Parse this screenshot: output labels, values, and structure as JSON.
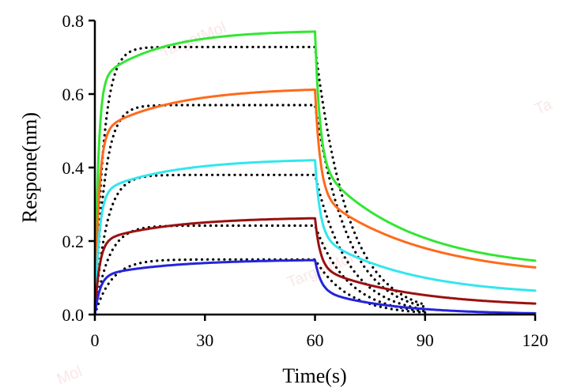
{
  "chart_data": {
    "type": "line",
    "title": "",
    "xlabel": "Time(s)",
    "ylabel": "Respone(nm)",
    "xlim": [
      0,
      120
    ],
    "ylim": [
      0,
      0.8
    ],
    "xticks": [
      "0",
      "30",
      "60",
      "90",
      "120"
    ],
    "yticks": [
      "0.0",
      "0.2",
      "0.4",
      "0.6",
      "0.8"
    ],
    "grid": false,
    "legend": "none",
    "association_end": 60,
    "series": [
      {
        "color": "#33e633",
        "plateau": 0.77,
        "k_fast": 1.1,
        "frac_fast": 0.82,
        "k_slow": 0.06,
        "residual": 0.12,
        "r1": 0.75,
        "r2": 0.04
      },
      {
        "color": "#ff6a1a",
        "plateau": 0.612,
        "k_fast": 0.9,
        "frac_fast": 0.8,
        "k_slow": 0.05,
        "residual": 0.1,
        "r1": 0.7,
        "r2": 0.035
      },
      {
        "color": "#33e6ee",
        "plateau": 0.42,
        "k_fast": 0.85,
        "frac_fast": 0.78,
        "k_slow": 0.05,
        "residual": 0.05,
        "r1": 0.72,
        "r2": 0.04
      },
      {
        "color": "#9a1010",
        "plateau": 0.262,
        "k_fast": 0.8,
        "frac_fast": 0.75,
        "k_slow": 0.05,
        "residual": 0.02,
        "r1": 0.7,
        "r2": 0.04
      },
      {
        "color": "#2424dd",
        "plateau": 0.148,
        "k_fast": 0.7,
        "frac_fast": 0.7,
        "k_slow": 0.05,
        "residual": 0.0,
        "r1": 0.6,
        "r2": 0.05
      }
    ],
    "fits": [
      {
        "plateau": 0.728,
        "kon": 0.42,
        "koff": 0.11
      },
      {
        "plateau": 0.57,
        "kon": 0.38,
        "koff": 0.11
      },
      {
        "plateau": 0.38,
        "kon": 0.32,
        "koff": 0.11
      },
      {
        "plateau": 0.242,
        "kon": 0.27,
        "koff": 0.11
      },
      {
        "plateau": 0.15,
        "kon": 0.22,
        "koff": 0.11
      }
    ]
  }
}
